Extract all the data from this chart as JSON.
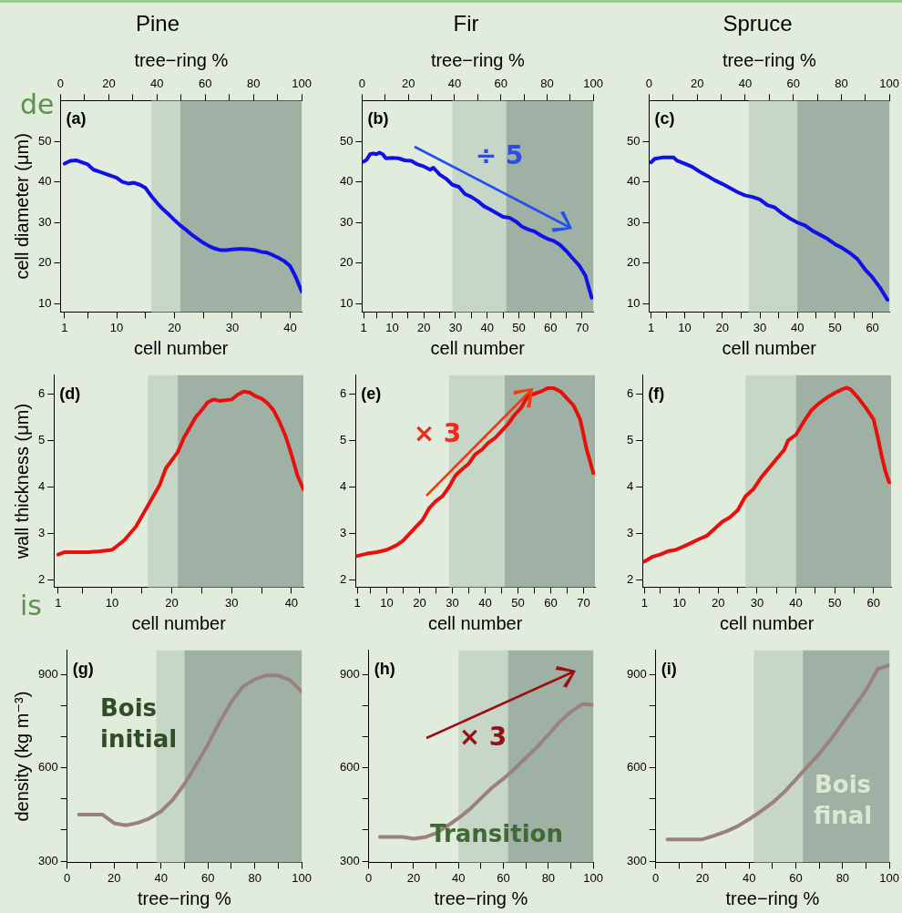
{
  "chart_data": [
    {
      "type": "line",
      "title": "Pine",
      "subtitle": "(a)",
      "x2label": "tree−ring %",
      "xlabel": "cell number",
      "ylabel": "cell diameter (μm)",
      "xlim": [
        0.3,
        42
      ],
      "ylim": [
        8,
        60
      ],
      "x2lim": [
        0,
        100
      ],
      "xticks": [
        1,
        {
          "value": 5,
          "label": null
        },
        10,
        {
          "value": 15,
          "label": null
        },
        20,
        {
          "value": 25,
          "label": null
        },
        30,
        {
          "value": 35,
          "label": null
        },
        40
      ],
      "yticks": [
        10,
        20,
        30,
        40,
        50
      ],
      "x2ticks": [
        0,
        {
          "value": 10,
          "label": null
        },
        20,
        {
          "value": 30,
          "label": null
        },
        40,
        {
          "value": 50,
          "label": null
        },
        60,
        {
          "value": 70,
          "label": null
        },
        80,
        {
          "value": 90,
          "label": null
        },
        100
      ],
      "bands": [
        {
          "axis": "x",
          "from": 16,
          "to": 21,
          "color": "#c6d6c7"
        },
        {
          "axis": "x",
          "from": 21,
          "to": 42,
          "color": "#9fb1a4"
        }
      ],
      "annotations": [
        "de"
      ],
      "series": [
        {
          "color": "#1010e8",
          "x": [
            1,
            2,
            3,
            4,
            5,
            6,
            7,
            8,
            9,
            10,
            11,
            12,
            13,
            14,
            15,
            16,
            17,
            18,
            19,
            20,
            21,
            22,
            23,
            24,
            25,
            26,
            27,
            28,
            29,
            30,
            31,
            32,
            33,
            34,
            35,
            36,
            37,
            38,
            39,
            40,
            41,
            42
          ],
          "values": [
            44.5,
            45.2,
            45.3,
            44.8,
            44.3,
            43,
            42.5,
            42,
            41.5,
            41,
            40,
            39.6,
            39.8,
            39.3,
            38.5,
            36.5,
            34.8,
            33.3,
            32,
            30.6,
            29.3,
            28.2,
            27,
            26,
            25,
            24.2,
            23.6,
            23.2,
            23.2,
            23.4,
            23.5,
            23.5,
            23.4,
            23.2,
            22.8,
            22.6,
            22,
            21.3,
            20.5,
            19.3,
            16.5,
            13
          ]
        }
      ]
    },
    {
      "type": "line",
      "title": "Fir",
      "subtitle": "(b)",
      "x2label": "tree−ring %",
      "xlabel": "cell number",
      "xlim": [
        0.5,
        73.5
      ],
      "ylim": [
        8,
        60
      ],
      "x2lim": [
        0,
        100
      ],
      "xticks": [
        1,
        {
          "value": 5,
          "label": null
        },
        10,
        {
          "value": 15,
          "label": null
        },
        20,
        {
          "value": 25,
          "label": null
        },
        30,
        {
          "value": 35,
          "label": null
        },
        40,
        {
          "value": 45,
          "label": null
        },
        50,
        {
          "value": 55,
          "label": null
        },
        60,
        {
          "value": 65,
          "label": null
        },
        70
      ],
      "yticks": [
        10,
        20,
        30,
        40,
        50
      ],
      "x2ticks": [
        0,
        {
          "value": 10,
          "label": null
        },
        20,
        {
          "value": 30,
          "label": null
        },
        40,
        {
          "value": 50,
          "label": null
        },
        60,
        {
          "value": 70,
          "label": null
        },
        80,
        {
          "value": 90,
          "label": null
        },
        100
      ],
      "bands": [
        {
          "axis": "x",
          "from": 29,
          "to": 46,
          "color": "#c6d6c7"
        },
        {
          "axis": "x",
          "from": 46,
          "to": 73.5,
          "color": "#9fb1a4"
        }
      ],
      "annotations": [
        "÷ 5"
      ],
      "series": [
        {
          "color": "#1010e8",
          "x": [
            1,
            2,
            3,
            4,
            5,
            6,
            7,
            8,
            10,
            12,
            14,
            16,
            18,
            20,
            22,
            23,
            25,
            27,
            29,
            31,
            33,
            35,
            37,
            39,
            41,
            43,
            45,
            47,
            49,
            51,
            53,
            55,
            57,
            59,
            61,
            63,
            65,
            67,
            69,
            71,
            73
          ],
          "values": [
            45,
            45.5,
            46.8,
            47,
            46.8,
            47.2,
            46.8,
            45.8,
            45.9,
            45.8,
            45.3,
            45.2,
            44.3,
            43.8,
            43,
            43.5,
            41.8,
            40.8,
            39.3,
            38.8,
            37,
            36.3,
            35.3,
            34,
            33.2,
            32.3,
            31.4,
            31.2,
            30.3,
            29,
            28.3,
            27.8,
            26.8,
            26,
            25.5,
            24.5,
            23,
            21.2,
            19.5,
            17,
            11.5
          ]
        }
      ]
    },
    {
      "type": "line",
      "title": "Spruce",
      "subtitle": "(c)",
      "x2label": "tree−ring %",
      "xlabel": "cell number",
      "xlim": [
        0.5,
        64.5
      ],
      "ylim": [
        8,
        60
      ],
      "x2lim": [
        0,
        100
      ],
      "xticks": [
        1,
        {
          "value": 5,
          "label": null
        },
        10,
        {
          "value": 15,
          "label": null
        },
        20,
        {
          "value": 25,
          "label": null
        },
        30,
        {
          "value": 35,
          "label": null
        },
        40,
        {
          "value": 45,
          "label": null
        },
        50,
        {
          "value": 55,
          "label": null
        },
        60
      ],
      "yticks": [
        10,
        20,
        30,
        40,
        50
      ],
      "x2ticks": [
        0,
        {
          "value": 10,
          "label": null
        },
        20,
        {
          "value": 30,
          "label": null
        },
        40,
        {
          "value": 50,
          "label": null
        },
        60,
        {
          "value": 70,
          "label": null
        },
        80,
        {
          "value": 90,
          "label": null
        },
        100
      ],
      "bands": [
        {
          "axis": "x",
          "from": 27,
          "to": 40,
          "color": "#c6d6c7"
        },
        {
          "axis": "x",
          "from": 40,
          "to": 64.5,
          "color": "#9fb1a4"
        }
      ],
      "series": [
        {
          "color": "#1010e8",
          "x": [
            1,
            2,
            4,
            6,
            7,
            8,
            10,
            12,
            14,
            16,
            18,
            20,
            22,
            24,
            26,
            28,
            30,
            32,
            34,
            36,
            38,
            40,
            42,
            44,
            46,
            48,
            50,
            52,
            54,
            56,
            58,
            60,
            62,
            64
          ],
          "values": [
            44.8,
            45.7,
            46,
            46,
            46,
            45.2,
            44.5,
            43.7,
            42.5,
            41.5,
            40.4,
            39.5,
            38.5,
            37.5,
            36.7,
            36.3,
            35.7,
            34.3,
            33.7,
            32.2,
            31,
            30,
            29.3,
            28,
            27,
            26,
            24.7,
            23.7,
            22.5,
            21,
            18.5,
            16.5,
            14,
            11
          ]
        }
      ]
    },
    {
      "type": "line",
      "subtitle": "(d)",
      "xlabel": "cell number",
      "ylabel": "wall thickness (μm)",
      "xlim": [
        0.3,
        42
      ],
      "ylim": [
        1.85,
        6.4
      ],
      "xticks": [
        1,
        {
          "value": 5,
          "label": null
        },
        10,
        {
          "value": 15,
          "label": null
        },
        20,
        {
          "value": 25,
          "label": null
        },
        30,
        {
          "value": 35,
          "label": null
        },
        40
      ],
      "yticks": [
        2,
        3,
        4,
        5,
        6
      ],
      "bands": [
        {
          "axis": "x",
          "from": 16,
          "to": 21,
          "color": "#c6d6c7"
        },
        {
          "axis": "x",
          "from": 21,
          "to": 42,
          "color": "#9fb1a4"
        }
      ],
      "annotations": [
        "is"
      ],
      "series": [
        {
          "color": "#e8100c",
          "x": [
            1,
            2,
            4,
            6,
            8,
            10,
            12,
            14,
            16,
            18,
            19,
            21,
            22,
            24,
            25,
            26,
            27,
            28,
            30,
            31,
            32,
            33,
            34,
            35,
            36,
            37,
            38,
            39,
            40,
            41,
            42
          ],
          "values": [
            2.55,
            2.6,
            2.6,
            2.6,
            2.62,
            2.65,
            2.85,
            3.15,
            3.6,
            4.05,
            4.4,
            4.75,
            5.05,
            5.5,
            5.65,
            5.82,
            5.88,
            5.85,
            5.88,
            5.98,
            6.05,
            6.03,
            5.95,
            5.9,
            5.8,
            5.65,
            5.4,
            5.1,
            4.7,
            4.25,
            3.95
          ]
        }
      ]
    },
    {
      "type": "line",
      "subtitle": "(e)",
      "xlabel": "cell number",
      "xlim": [
        0.5,
        73.5
      ],
      "ylim": [
        1.85,
        6.4
      ],
      "xticks": [
        1,
        {
          "value": 5,
          "label": null
        },
        10,
        {
          "value": 15,
          "label": null
        },
        20,
        {
          "value": 25,
          "label": null
        },
        30,
        {
          "value": 35,
          "label": null
        },
        40,
        {
          "value": 45,
          "label": null
        },
        50,
        {
          "value": 55,
          "label": null
        },
        60,
        {
          "value": 65,
          "label": null
        },
        70
      ],
      "yticks": [
        2,
        3,
        4,
        5,
        6
      ],
      "bands": [
        {
          "axis": "x",
          "from": 29,
          "to": 46,
          "color": "#c6d6c7"
        },
        {
          "axis": "x",
          "from": 46,
          "to": 73.5,
          "color": "#9fb1a4"
        }
      ],
      "annotations": [
        "× 3"
      ],
      "series": [
        {
          "color": "#e8100c",
          "x": [
            1,
            4,
            7,
            10,
            13,
            15,
            17,
            19,
            21,
            23,
            25,
            27,
            29,
            31,
            33,
            35,
            37,
            39,
            41,
            43,
            45,
            47,
            49,
            51,
            53,
            55,
            57,
            59,
            61,
            63,
            65,
            67,
            69,
            71,
            73
          ],
          "values": [
            2.52,
            2.57,
            2.6,
            2.65,
            2.75,
            2.85,
            3,
            3.15,
            3.3,
            3.55,
            3.7,
            3.8,
            4,
            4.25,
            4.38,
            4.5,
            4.7,
            4.8,
            4.95,
            5.05,
            5.2,
            5.35,
            5.55,
            5.7,
            5.95,
            6,
            6.05,
            6.12,
            6.12,
            6.05,
            5.9,
            5.75,
            5.45,
            4.8,
            4.3
          ]
        }
      ]
    },
    {
      "type": "line",
      "subtitle": "(f)",
      "xlabel": "cell number",
      "xlim": [
        0.5,
        64.5
      ],
      "ylim": [
        1.85,
        6.4
      ],
      "xticks": [
        1,
        {
          "value": 5,
          "label": null
        },
        10,
        {
          "value": 15,
          "label": null
        },
        20,
        {
          "value": 25,
          "label": null
        },
        30,
        {
          "value": 35,
          "label": null
        },
        40,
        {
          "value": 45,
          "label": null
        },
        50,
        {
          "value": 55,
          "label": null
        },
        60
      ],
      "yticks": [
        2,
        3,
        4,
        5,
        6
      ],
      "bands": [
        {
          "axis": "x",
          "from": 27,
          "to": 40,
          "color": "#c6d6c7"
        },
        {
          "axis": "x",
          "from": 40,
          "to": 64.5,
          "color": "#9fb1a4"
        }
      ],
      "series": [
        {
          "color": "#e8100c",
          "x": [
            1,
            3,
            5,
            7,
            9,
            11,
            13,
            15,
            17,
            19,
            21,
            23,
            25,
            27,
            29,
            31,
            33,
            35,
            37,
            38,
            40,
            42,
            44,
            46,
            48,
            50,
            52,
            53,
            54,
            56,
            58,
            60,
            61,
            62,
            63,
            64
          ],
          "values": [
            2.4,
            2.5,
            2.55,
            2.62,
            2.65,
            2.72,
            2.8,
            2.88,
            2.95,
            3.1,
            3.25,
            3.35,
            3.5,
            3.8,
            3.95,
            4.2,
            4.4,
            4.6,
            4.8,
            5,
            5.12,
            5.4,
            5.65,
            5.8,
            5.92,
            6.02,
            6.1,
            6.13,
            6.1,
            5.92,
            5.7,
            5.45,
            5.1,
            4.7,
            4.35,
            4.1
          ]
        }
      ]
    },
    {
      "type": "line",
      "subtitle": "(g)",
      "xlabel": "tree−ring %",
      "ylabel": "density (kg m⁻³)",
      "xlim": [
        0,
        100
      ],
      "ylim": [
        296,
        978
      ],
      "xticks": [
        0,
        {
          "value": 10,
          "label": null
        },
        20,
        {
          "value": 30,
          "label": null
        },
        40,
        {
          "value": 50,
          "label": null
        },
        60,
        {
          "value": 70,
          "label": null
        },
        80,
        {
          "value": 90,
          "label": null
        },
        100
      ],
      "yticks": [
        300,
        {
          "value": 400,
          "label": null
        },
        {
          "value": 500,
          "label": null
        },
        600,
        {
          "value": 700,
          "label": null
        },
        {
          "value": 800,
          "label": null
        },
        900
      ],
      "bands": [
        {
          "axis": "x",
          "from": 38,
          "to": 50,
          "color": "#c6d6c7"
        },
        {
          "axis": "x",
          "from": 50,
          "to": 100,
          "color": "#9fb1a4"
        }
      ],
      "annotations": [
        "Bois initial"
      ],
      "series": [
        {
          "color": "#9b8080",
          "x": [
            5,
            10,
            15,
            20,
            25,
            30,
            35,
            40,
            45,
            50,
            55,
            60,
            65,
            70,
            75,
            80,
            85,
            90,
            95,
            100
          ],
          "values": [
            450,
            450,
            450,
            422,
            415,
            423,
            437,
            460,
            497,
            548,
            610,
            675,
            748,
            812,
            862,
            885,
            898,
            897,
            882,
            845
          ]
        }
      ]
    },
    {
      "type": "line",
      "subtitle": "(h)",
      "xlabel": "tree−ring %",
      "xlim": [
        0,
        100
      ],
      "ylim": [
        296,
        978
      ],
      "xticks": [
        0,
        {
          "value": 10,
          "label": null
        },
        20,
        {
          "value": 30,
          "label": null
        },
        40,
        {
          "value": 50,
          "label": null
        },
        60,
        {
          "value": 70,
          "label": null
        },
        80,
        {
          "value": 90,
          "label": null
        },
        100
      ],
      "yticks": [
        300,
        {
          "value": 400,
          "label": null
        },
        {
          "value": 500,
          "label": null
        },
        600,
        {
          "value": 700,
          "label": null
        },
        {
          "value": 800,
          "label": null
        },
        900
      ],
      "bands": [
        {
          "axis": "x",
          "from": 40,
          "to": 62,
          "color": "#c6d6c7"
        },
        {
          "axis": "x",
          "from": 62,
          "to": 100,
          "color": "#9fb1a4"
        }
      ],
      "annotations": [
        "× 3",
        "Transition"
      ],
      "series": [
        {
          "color": "#9b8080",
          "x": [
            5,
            10,
            15,
            20,
            25,
            30,
            35,
            40,
            45,
            50,
            55,
            60,
            65,
            70,
            75,
            80,
            85,
            90,
            95,
            100
          ],
          "values": [
            378,
            378,
            378,
            372,
            377,
            390,
            413,
            438,
            467,
            502,
            537,
            565,
            598,
            632,
            667,
            707,
            748,
            780,
            805,
            803
          ]
        }
      ]
    },
    {
      "type": "line",
      "subtitle": "(i)",
      "xlabel": "tree−ring %",
      "xlim": [
        0,
        100
      ],
      "ylim": [
        296,
        978
      ],
      "xticks": [
        0,
        {
          "value": 10,
          "label": null
        },
        20,
        {
          "value": 30,
          "label": null
        },
        40,
        {
          "value": 50,
          "label": null
        },
        60,
        {
          "value": 70,
          "label": null
        },
        80,
        {
          "value": 90,
          "label": null
        },
        100
      ],
      "yticks": [
        300,
        {
          "value": 400,
          "label": null
        },
        {
          "value": 500,
          "label": null
        },
        600,
        {
          "value": 700,
          "label": null
        },
        {
          "value": 800,
          "label": null
        },
        900
      ],
      "bands": [
        {
          "axis": "x",
          "from": 42,
          "to": 63,
          "color": "#c6d6c7"
        },
        {
          "axis": "x",
          "from": 63,
          "to": 100,
          "color": "#9fb1a4"
        }
      ],
      "annotations": [
        "Bois final"
      ],
      "series": [
        {
          "color": "#9b8080",
          "x": [
            5,
            10,
            15,
            20,
            25,
            30,
            35,
            40,
            45,
            50,
            55,
            60,
            65,
            70,
            75,
            80,
            85,
            90,
            95,
            100
          ],
          "values": [
            370,
            370,
            370,
            370,
            382,
            395,
            412,
            435,
            460,
            488,
            522,
            563,
            605,
            645,
            692,
            745,
            797,
            850,
            918,
            930
          ]
        }
      ]
    }
  ]
}
